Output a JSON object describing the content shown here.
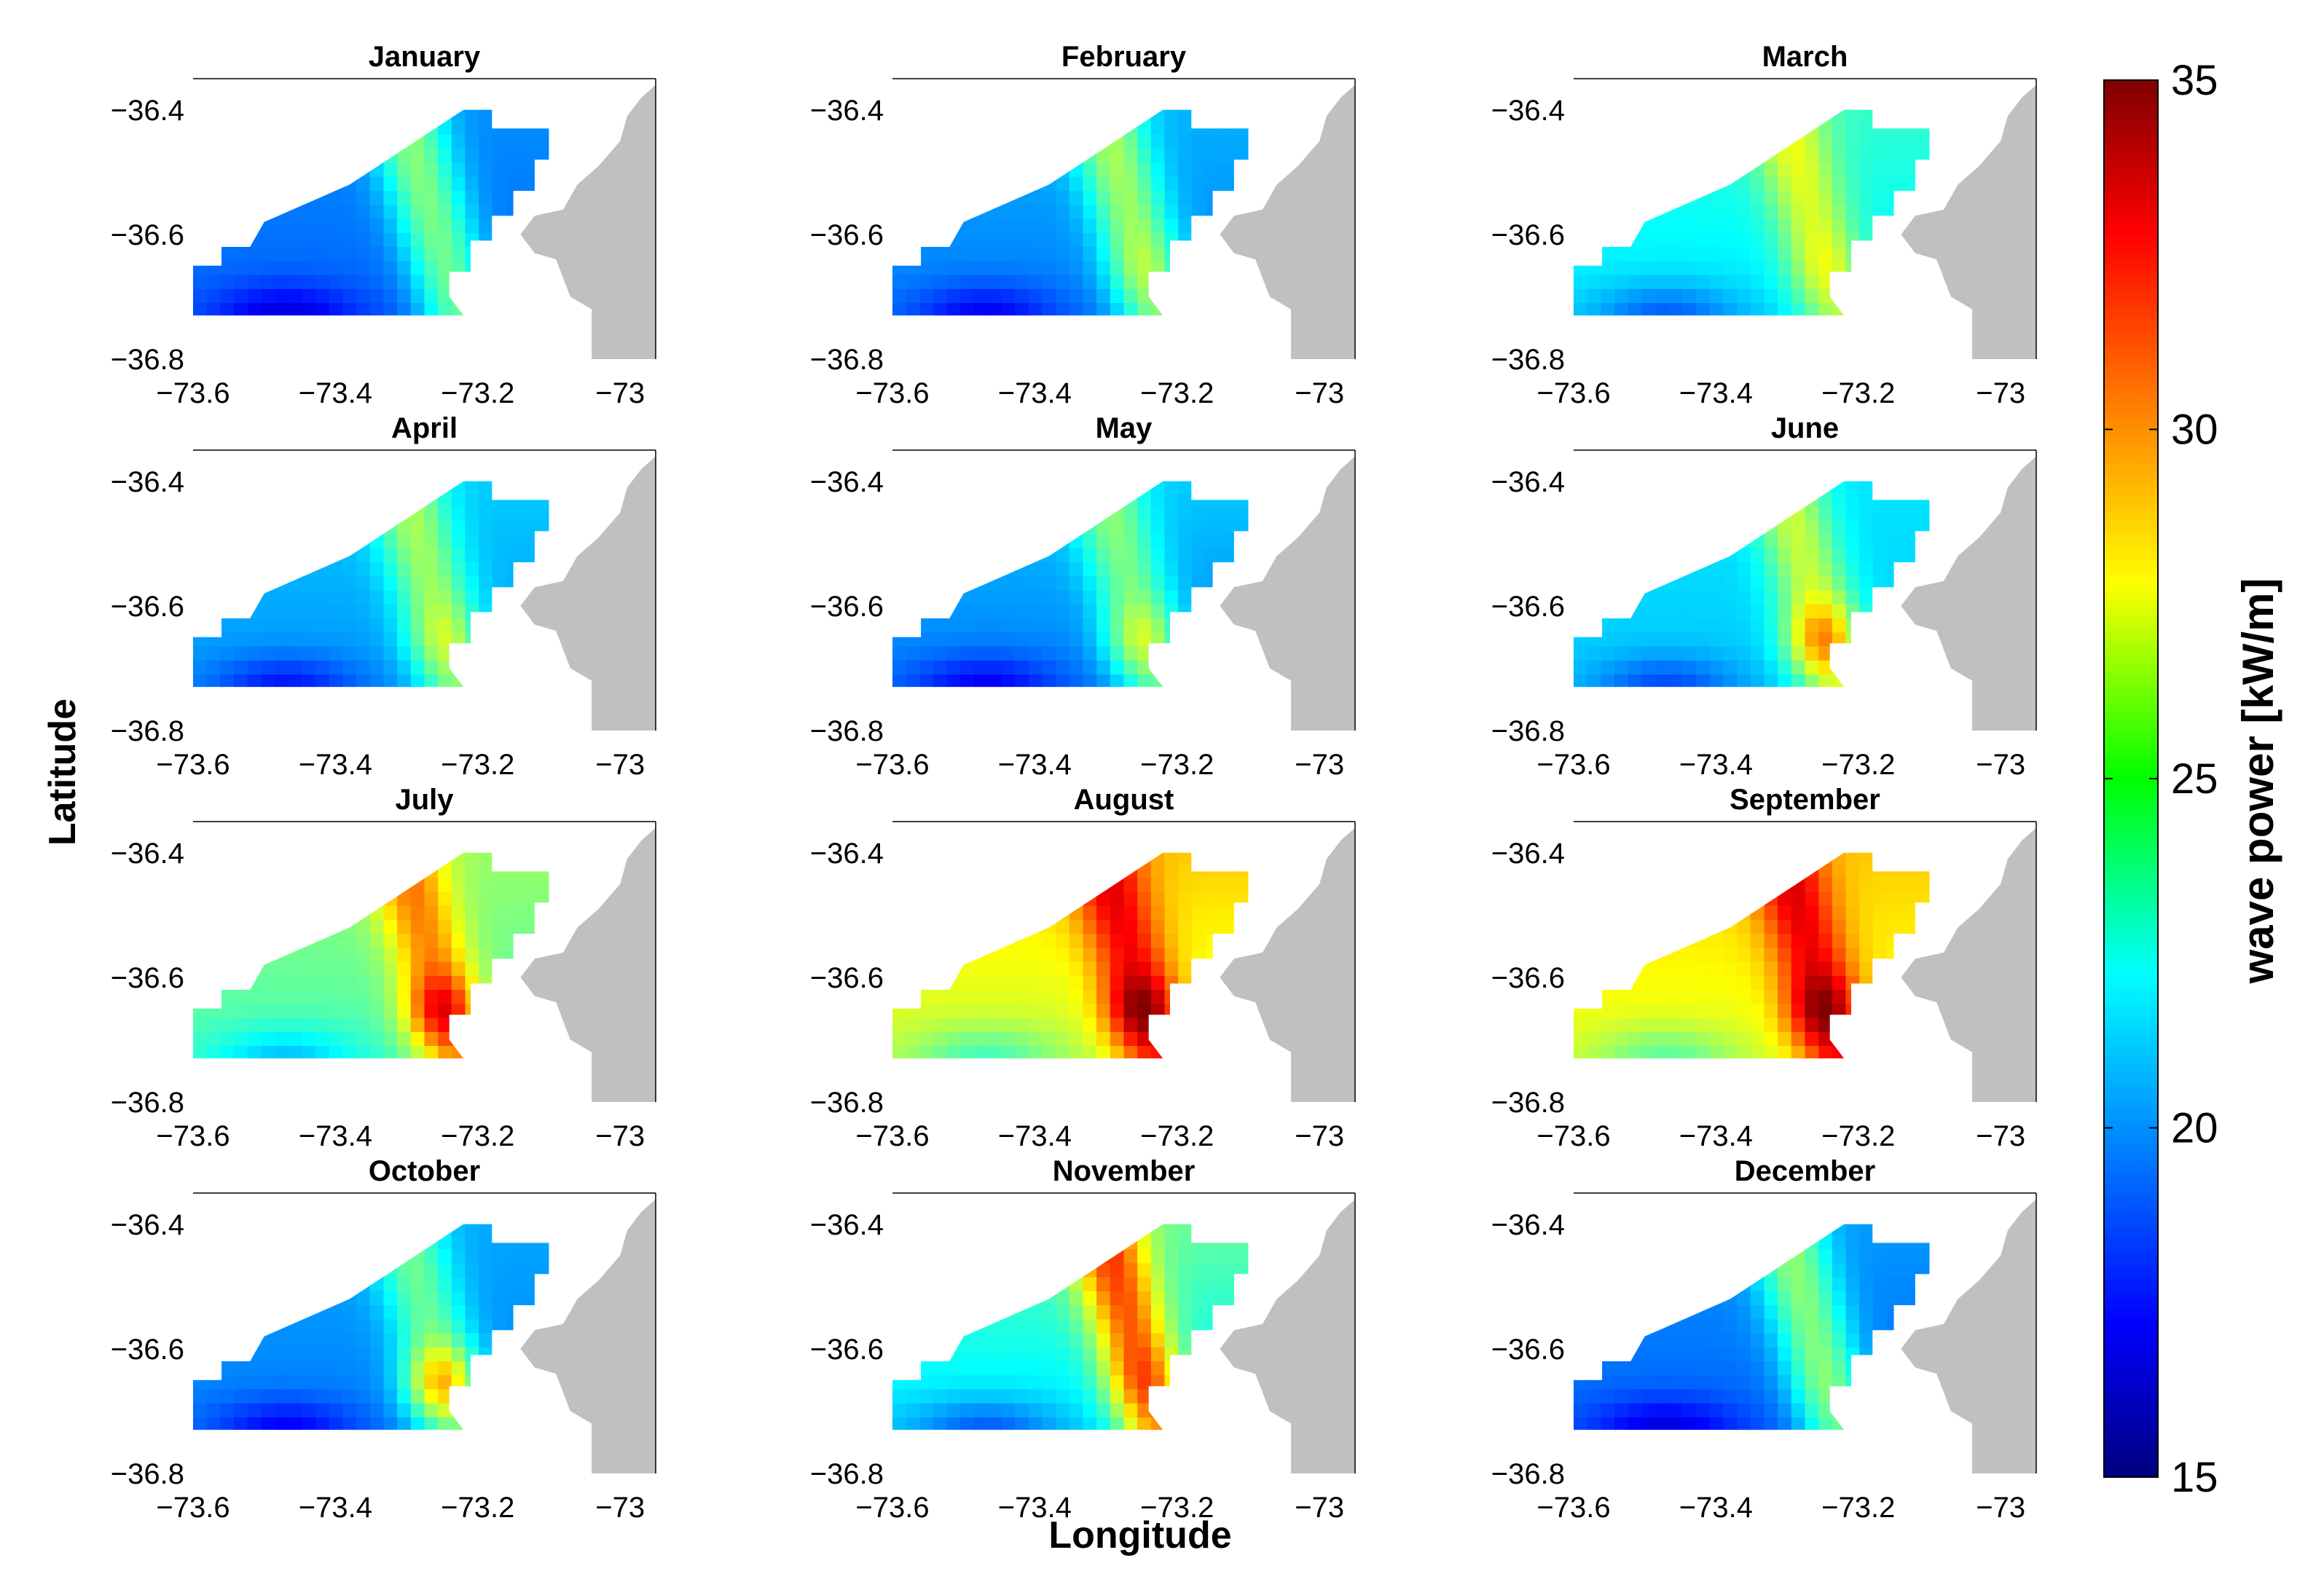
{
  "chart_data": {
    "type": "heatmap",
    "xlabel": "Longitude",
    "ylabel": "Latitude",
    "xlim": [
      -73.6,
      -72.95
    ],
    "ylim": [
      -36.8,
      -36.35
    ],
    "xticks": [
      "−73.6",
      "−73.4",
      "−73.2",
      "−73"
    ],
    "xtick_values": [
      -73.6,
      -73.4,
      -73.2,
      -73.0
    ],
    "yticks": [
      "−36.4",
      "−36.6",
      "−36.8"
    ],
    "ytick_values": [
      -36.4,
      -36.6,
      -36.8
    ],
    "colorbar": {
      "label": "wave power [kW/m]",
      "range": [
        15,
        35
      ],
      "ticks": [
        "35",
        "30",
        "25",
        "20",
        "15"
      ],
      "tick_values": [
        35,
        30,
        25,
        20,
        15
      ],
      "colormap": "jet"
    },
    "land_color": "#c0c0c0",
    "panels": [
      {
        "title": "January",
        "base": 19.5,
        "north": 0.8,
        "ridge": 24.5,
        "hot": 24.5
      },
      {
        "title": "February",
        "base": 20.0,
        "north": 1.0,
        "ridge": 25.0,
        "hot": 26.0
      },
      {
        "title": "March",
        "base": 22.0,
        "north": 1.5,
        "ridge": 26.0,
        "hot": 27.0
      },
      {
        "title": "April",
        "base": 20.5,
        "north": 1.0,
        "ridge": 25.0,
        "hot": 26.5
      },
      {
        "title": "May",
        "base": 20.0,
        "north": 1.5,
        "ridge": 24.0,
        "hot": 26.5
      },
      {
        "title": "June",
        "base": 21.5,
        "north": 0.5,
        "ridge": 26.0,
        "hot": 30.0
      },
      {
        "title": "July",
        "base": 24.0,
        "north": 1.5,
        "ridge": 29.0,
        "hot": 33.0
      },
      {
        "title": "August",
        "base": 26.5,
        "north": 2.0,
        "ridge": 31.5,
        "hot": 35.0
      },
      {
        "title": "September",
        "base": 27.0,
        "north": 1.5,
        "ridge": 32.0,
        "hot": 35.0
      },
      {
        "title": "October",
        "base": 20.0,
        "north": 0.8,
        "ridge": 24.0,
        "hot": 29.0
      },
      {
        "title": "November",
        "base": 22.0,
        "north": 2.5,
        "ridge": 29.5,
        "hot": 31.0
      },
      {
        "title": "December",
        "base": 19.5,
        "north": 1.0,
        "ridge": 24.5,
        "hot": 25.0
      }
    ]
  }
}
